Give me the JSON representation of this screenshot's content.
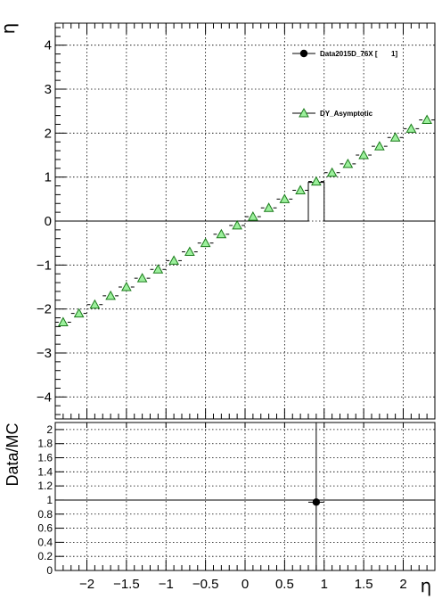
{
  "chart_data": [
    {
      "type": "scatter",
      "ylabel": "η",
      "xlim": [
        -2.4,
        2.4
      ],
      "ylim": [
        -4.5,
        4.5
      ],
      "grid": true,
      "legend_position": "top-right",
      "y_ticks": [
        "−4",
        "−3",
        "−2",
        "−1",
        "0",
        "1",
        "2",
        "3",
        "4"
      ],
      "series": [
        {
          "name": "Data2015D_76X [       1]",
          "marker": "filled-circle",
          "color": "#000000",
          "bins": [
            {
              "x_low": -2.4,
              "x_high": 0.8,
              "y": 0
            },
            {
              "x_low": 0.8,
              "x_high": 1.0,
              "y": 0.88
            },
            {
              "x_low": 1.0,
              "x_high": 2.4,
              "y": 0
            }
          ]
        },
        {
          "name": "DY_Asymptotic",
          "marker": "open-triangle",
          "color": "#33cc33",
          "x": [
            -2.3,
            -2.1,
            -1.9,
            -1.7,
            -1.5,
            -1.3,
            -1.1,
            -0.9,
            -0.7,
            -0.5,
            -0.3,
            -0.1,
            0.1,
            0.3,
            0.5,
            0.7,
            0.9,
            1.1,
            1.3,
            1.5,
            1.7,
            1.9,
            2.1,
            2.3
          ],
          "y": [
            -2.3,
            -2.1,
            -1.9,
            -1.7,
            -1.5,
            -1.3,
            -1.1,
            -0.9,
            -0.7,
            -0.5,
            -0.3,
            -0.1,
            0.1,
            0.3,
            0.5,
            0.7,
            0.9,
            1.1,
            1.3,
            1.5,
            1.7,
            1.9,
            2.1,
            2.3
          ],
          "x_halfwidth": 0.1
        }
      ]
    },
    {
      "type": "scatter",
      "xlabel": "η",
      "ylabel": "Data/MC",
      "xlim": [
        -2.4,
        2.4
      ],
      "ylim": [
        0,
        2.1
      ],
      "grid": true,
      "reference_line": 1,
      "x_ticks": [
        "−2",
        "−1.5",
        "−1",
        "−0.5",
        "0",
        "0.5",
        "1",
        "1.5",
        "2"
      ],
      "y_ticks": [
        "0",
        "0.2",
        "0.4",
        "0.6",
        "0.8",
        "1",
        "1.2",
        "1.4",
        "1.6",
        "1.8",
        "2"
      ],
      "series": [
        {
          "marker": "filled-circle",
          "color": "#000000",
          "x": [
            0.9
          ],
          "y": [
            0.97
          ],
          "x_halfwidth": 0.1,
          "y_err": [
            1.6,
            1.2
          ]
        }
      ]
    }
  ]
}
